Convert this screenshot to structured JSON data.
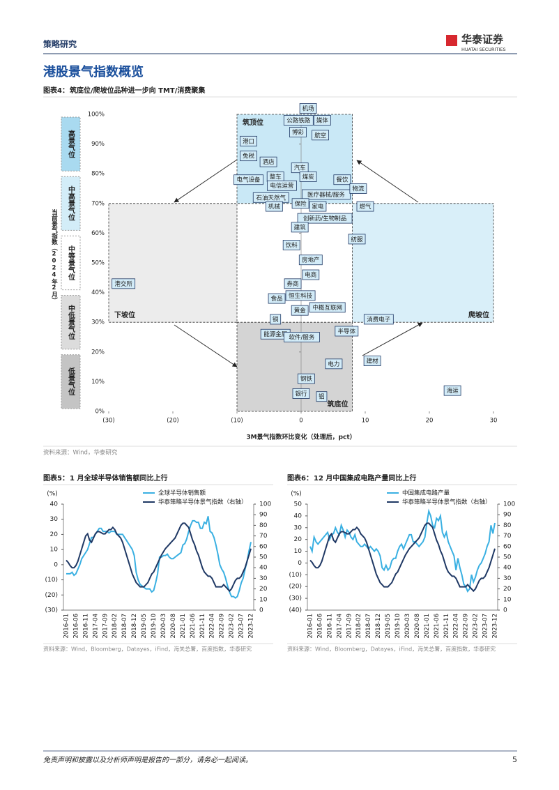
{
  "header": {
    "section": "策略研究",
    "logo": "华泰证券",
    "logo_en": "HUATAI SECURITIES"
  },
  "page_title": "港股景气指数概览",
  "chart_data": [
    {
      "type": "scatter",
      "label": "图表4：",
      "title": "筑底位/爬坡位品种进一步向 TMT/消费聚集",
      "source": "资料来源：Wind，华泰研究",
      "xlabel": "3M景气指数环比变化（处理后，pct）",
      "ylabel": "当前景气指数（2024年2月）",
      "xlim": [
        -30,
        30
      ],
      "ylim": [
        0,
        100
      ],
      "xticks": [
        {
          "value": -30,
          "label": "(30)"
        },
        {
          "value": -20,
          "label": "(20)"
        },
        {
          "value": -10,
          "label": "(10)"
        },
        0,
        10,
        20,
        30
      ],
      "yticks": [
        {
          "value": 0,
          "label": "0%"
        },
        {
          "value": 10,
          "label": "10%"
        },
        {
          "value": 20,
          "label": "20%"
        },
        {
          "value": 30,
          "label": "30%"
        },
        {
          "value": 40,
          "label": "40%"
        },
        {
          "value": 50,
          "label": "50%"
        },
        {
          "value": 60,
          "label": "60%"
        },
        {
          "value": 70,
          "label": "70%"
        },
        {
          "value": 80,
          "label": "80%"
        },
        {
          "value": 90,
          "label": "90%"
        },
        {
          "value": 100,
          "label": "100%"
        }
      ],
      "color": "#d3ecf8",
      "labels": [
        "机场",
        "公路铁路",
        "媒体",
        "博彩",
        "航空",
        "港口",
        "免税",
        "酒店",
        "汽车",
        "电气设备",
        "整车",
        "煤炭",
        "餐饮",
        "电信运营",
        "石油天然气",
        "医疗器械/服务",
        "物流",
        "保险",
        "家电",
        "机械",
        "燃气",
        "创新药/生物制品",
        "建筑",
        "纺服",
        "饮料",
        "房地产",
        "电商",
        "港交所",
        "券商",
        "恒生科技",
        "食品",
        "中概互联网",
        "黄金",
        "消费电子",
        "铜",
        "能源金属",
        "软件/服务",
        "半导体",
        "电力",
        "建材",
        "钢铁",
        "银行",
        "铝",
        "海运"
      ],
      "x": [
        1.1,
        -0.4,
        3.3,
        -0.5,
        3.0,
        -8.2,
        -8.2,
        -5.1,
        -0.2,
        -8.2,
        -4.0,
        1.1,
        6.4,
        -3.0,
        -4.7,
        3.9,
        8.9,
        -0.1,
        2.6,
        -4.2,
        10.0,
        3.7,
        -0.2,
        8.7,
        -1.5,
        1.5,
        1.5,
        -27.7,
        -1.3,
        -0.1,
        -3.8,
        4.1,
        -0.2,
        12.1,
        -4.0,
        -4.0,
        0.1,
        7.1,
        5.1,
        11.1,
        0.8,
        0,
        3.2,
        23.6
      ],
      "values": [
        102,
        98,
        98,
        94,
        93,
        91,
        86,
        84,
        82,
        78,
        79,
        79,
        78,
        76,
        72,
        73,
        75,
        70,
        69,
        69,
        69,
        65,
        62,
        58,
        56,
        51,
        46,
        43,
        43,
        39,
        38,
        35,
        34,
        31,
        31,
        26,
        25,
        27,
        16,
        17,
        11,
        6,
        5,
        7
      ],
      "zones": [
        {
          "label": "下坡位",
          "x": [
            -30,
            -10
          ],
          "y": [
            30,
            70
          ],
          "color": "#ececec",
          "label_corner": "bottom-left"
        },
        {
          "label": "爬坡位",
          "x": [
            8,
            30
          ],
          "y": [
            30,
            70
          ],
          "color": "#d9eff9",
          "label_corner": "bottom-right"
        },
        {
          "label": "筑顶位",
          "x": [
            -10,
            8
          ],
          "y": [
            70,
            100
          ],
          "color": "#c9e8f6",
          "label_corner": "top-left"
        },
        {
          "label": "筑底位",
          "x": [
            -10,
            8
          ],
          "y": [
            0,
            30
          ],
          "color": "#d4d4d4",
          "label_corner": "bottom-right"
        }
      ],
      "y_bands": [
        {
          "label": "高景气位",
          "range": [
            80,
            100
          ],
          "color": "#a9daf0"
        },
        {
          "label": "中高景气位",
          "range": [
            60,
            80
          ],
          "color": "#d3edf8"
        },
        {
          "label": "中等景气位",
          "range": [
            40,
            60
          ],
          "color": "#ffffff"
        },
        {
          "label": "中低景气位",
          "range": [
            20,
            40
          ],
          "color": "#dcdcdc"
        },
        {
          "label": "低景气位",
          "range": [
            0,
            20
          ],
          "color": "#c4c4c4"
        }
      ]
    },
    {
      "type": "line",
      "label": "图表5：",
      "title": "1 月全球半导体销售额同比上行",
      "source": "资料来源：Wind，Bloomberg，Datayes，iFind，海关总署，百度指数，华泰研究",
      "ylabel": "(%)",
      "categories": [
        "2016-01",
        null,
        null,
        null,
        null,
        "2016-06",
        null,
        null,
        null,
        null,
        "2016-11",
        null,
        null,
        null,
        null,
        "2017-04",
        null,
        null,
        null,
        null,
        "2017-09",
        null,
        null,
        null,
        null,
        "2018-02",
        null,
        null,
        null,
        null,
        "2018-07",
        null,
        null,
        null,
        null,
        "2018-12",
        null,
        null,
        null,
        null,
        "2019-05",
        null,
        null,
        null,
        null,
        "2019-10",
        null,
        null,
        null,
        null,
        "2020-03",
        null,
        null,
        null,
        null,
        "2020-08",
        null,
        null,
        null,
        null,
        "2021-01",
        null,
        null,
        null,
        null,
        "2021-06",
        null,
        null,
        null,
        null,
        "2021-11",
        null,
        null,
        null,
        null,
        "2022-04",
        null,
        null,
        null,
        null,
        "2022-09",
        null,
        null,
        null,
        null,
        "2023-02",
        null,
        null,
        null,
        null,
        "2023-07",
        null,
        null,
        null,
        null,
        "2023-12"
      ],
      "ylim": [
        -30,
        40
      ],
      "yticks": [
        {
          "value": -30,
          "label": "(30)"
        },
        {
          "value": -20,
          "label": "(20)"
        },
        {
          "value": -10,
          "label": "(10)"
        },
        0,
        10,
        20,
        30,
        40
      ],
      "y2lim": [
        0,
        100
      ],
      "y2ticks": [
        0,
        10,
        20,
        30,
        40,
        50,
        60,
        70,
        80,
        90,
        100
      ],
      "series": [
        {
          "name": "全球半导体销售额",
          "color": "#3ab0e2",
          "values": [
            -6,
            -6,
            -6,
            -5,
            -7,
            -6,
            -3,
            0,
            4,
            6,
            8,
            10,
            14,
            18,
            18,
            20,
            22,
            24,
            24,
            22,
            22,
            22,
            21,
            22,
            22,
            22,
            20,
            20,
            20,
            20,
            18,
            16,
            14,
            12,
            10,
            6,
            -5,
            -10,
            -13,
            -14,
            -15,
            -16,
            -16,
            -16,
            -18,
            -17,
            -12,
            -6,
            5,
            5,
            6,
            6,
            7,
            5,
            4,
            4,
            5,
            6,
            7,
            8,
            13,
            14,
            17,
            22,
            26,
            29,
            29,
            28,
            28,
            24,
            24,
            28,
            27,
            32,
            22,
            21,
            18,
            13,
            7,
            0,
            -3,
            -5,
            -9,
            -14,
            -18,
            -21,
            -21,
            -22,
            -21,
            -17,
            -12,
            -9,
            -3,
            2,
            9,
            15
          ]
        },
        {
          "name": "华泰策略半导体景气指数（右轴）",
          "color": "#1f3864",
          "axis": "y2",
          "values": [
            47,
            45,
            42,
            40,
            40,
            42,
            46,
            52,
            58,
            64,
            70,
            72,
            66,
            64,
            68,
            72,
            74,
            74,
            73,
            72,
            72,
            74,
            76,
            76,
            78,
            76,
            72,
            70,
            68,
            64,
            58,
            52,
            46,
            40,
            34,
            30,
            26,
            24,
            22,
            22,
            22,
            24,
            26,
            30,
            34,
            36,
            40,
            44,
            48,
            52,
            55,
            58,
            60,
            62,
            64,
            66,
            68,
            72,
            76,
            80,
            82,
            82,
            80,
            78,
            72,
            66,
            62,
            56,
            52,
            46,
            40,
            36,
            34,
            32,
            32,
            30,
            26,
            22,
            22,
            22,
            22,
            24,
            22,
            20,
            18,
            20,
            24,
            28,
            30,
            30,
            32,
            36,
            40,
            46,
            52,
            58
          ]
        }
      ]
    },
    {
      "type": "line",
      "label": "图表6：",
      "title": "12 月中国集成电路产量同比上行",
      "source": "资料来源：Wind，Bloomberg，Datayes，iFind，海关总署，百度指数，华泰研究",
      "ylabel": "(%)",
      "categories": [
        "2016-01",
        null,
        null,
        null,
        null,
        "2016-06",
        null,
        null,
        null,
        null,
        "2016-11",
        null,
        null,
        null,
        null,
        "2017-04",
        null,
        null,
        null,
        null,
        "2017-09",
        null,
        null,
        null,
        null,
        "2018-02",
        null,
        null,
        null,
        null,
        "2018-07",
        null,
        null,
        null,
        null,
        "2018-12",
        null,
        null,
        null,
        null,
        "2019-05",
        null,
        null,
        null,
        null,
        "2019-10",
        null,
        null,
        null,
        null,
        "2020-03",
        null,
        null,
        null,
        null,
        "2020-08",
        null,
        null,
        null,
        null,
        "2021-01",
        null,
        null,
        null,
        null,
        "2021-06",
        null,
        null,
        null,
        null,
        "2021-11",
        null,
        null,
        null,
        null,
        "2022-04",
        null,
        null,
        null,
        null,
        "2022-09",
        null,
        null,
        null,
        null,
        "2023-02",
        null,
        null,
        null,
        null,
        "2023-07",
        null,
        null,
        null,
        null,
        "2023-12"
      ],
      "ylim": [
        -40,
        50
      ],
      "yticks": [
        {
          "value": -40,
          "label": "(40)"
        },
        {
          "value": -30,
          "label": "(30)"
        },
        {
          "value": -20,
          "label": "(20)"
        },
        {
          "value": -10,
          "label": "(10)"
        },
        0,
        10,
        20,
        30,
        40,
        50
      ],
      "y2lim": [
        0,
        100
      ],
      "y2ticks": [
        0,
        10,
        20,
        30,
        40,
        50,
        60,
        70,
        80,
        90,
        100
      ],
      "series": [
        {
          "name": "中国集成电路产量",
          "color": "#3ab0e2",
          "values": [
            14,
            10,
            22,
            18,
            16,
            18,
            20,
            22,
            24,
            26,
            20,
            24,
            25,
            30,
            26,
            24,
            32,
            28,
            22,
            28,
            26,
            22,
            20,
            24,
            18,
            16,
            14,
            14,
            16,
            14,
            12,
            14,
            12,
            10,
            12,
            10,
            6,
            -4,
            -6,
            -2,
            -6,
            -4,
            2,
            4,
            4,
            10,
            14,
            16,
            12,
            16,
            20,
            24,
            24,
            18,
            18,
            16,
            14,
            16,
            18,
            22,
            34,
            44,
            40,
            32,
            30,
            38,
            36,
            40,
            26,
            22,
            26,
            18,
            14,
            10,
            6,
            -6,
            4,
            -4,
            -10,
            -18,
            -20,
            -24,
            -22,
            -10,
            -16,
            -12,
            -6,
            -2,
            0,
            4,
            8,
            14,
            18,
            32,
            25,
            34
          ]
        },
        {
          "name": "华泰策略半导体景气指数（右轴）",
          "color": "#1f3864",
          "axis": "y2",
          "values": [
            47,
            45,
            42,
            40,
            40,
            42,
            46,
            52,
            58,
            64,
            70,
            72,
            66,
            64,
            68,
            72,
            74,
            74,
            73,
            72,
            72,
            74,
            76,
            76,
            78,
            76,
            72,
            70,
            68,
            64,
            58,
            52,
            46,
            40,
            34,
            30,
            26,
            24,
            22,
            22,
            22,
            24,
            26,
            30,
            34,
            36,
            40,
            44,
            48,
            52,
            55,
            58,
            60,
            62,
            64,
            66,
            68,
            72,
            76,
            80,
            82,
            82,
            80,
            78,
            72,
            66,
            62,
            56,
            52,
            46,
            40,
            36,
            34,
            32,
            32,
            30,
            26,
            22,
            22,
            22,
            22,
            24,
            22,
            20,
            18,
            20,
            24,
            28,
            30,
            30,
            32,
            36,
            40,
            46,
            52,
            58
          ]
        }
      ]
    }
  ],
  "footer": {
    "disclaimer": "免责声明和披露以及分析师声明是报告的一部分，请务必一起阅读。",
    "page": 5
  }
}
